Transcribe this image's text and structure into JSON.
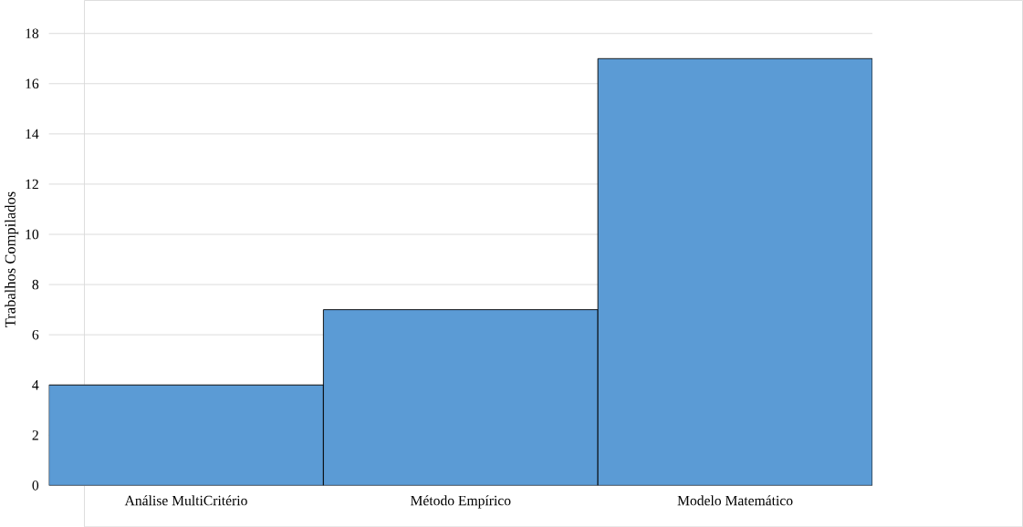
{
  "chart_data": {
    "type": "bar",
    "ylabel": "Trabalhos Compilados",
    "categories": [
      "Análise MultiCritério",
      "Método Empírico",
      "Modelo Matemático"
    ],
    "values": [
      4,
      7,
      17
    ],
    "color": "#5b9bd5",
    "ylim": [
      0,
      18
    ],
    "yticks": [
      0,
      2,
      4,
      6,
      8,
      10,
      12,
      14,
      16,
      18
    ],
    "grid": "y"
  }
}
